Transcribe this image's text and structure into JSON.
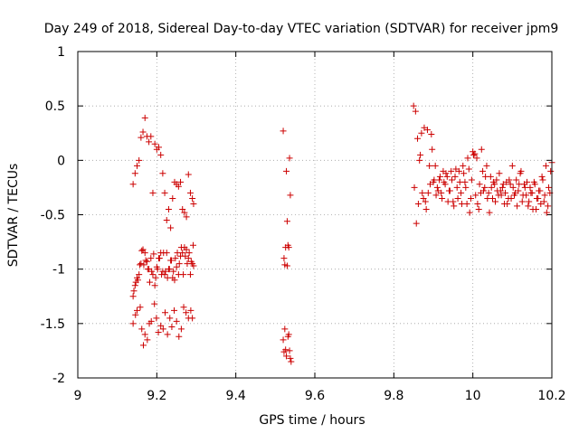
{
  "chart_data": {
    "type": "scatter",
    "title": "Day 249 of 2018, Sidereal Day-to-day VTEC variation (SDTVAR) for receiver jpm9",
    "xlabel": "GPS time / hours",
    "ylabel": "SDTVAR / TECUs",
    "xlim": [
      9.0,
      10.2
    ],
    "ylim": [
      -2.0,
      1.0
    ],
    "xticks": [
      9.0,
      9.2,
      9.4,
      9.6,
      9.8,
      10.0,
      10.2
    ],
    "xtick_labels": [
      "9",
      "9.2",
      "9.4",
      "9.6",
      "9.8",
      "10",
      "10.2"
    ],
    "yticks": [
      -2.0,
      -1.5,
      -1.0,
      -0.5,
      0.0,
      0.5,
      1.0
    ],
    "ytick_labels": [
      "-2",
      "-1.5",
      "-1",
      "-0.5",
      "0",
      "0.5",
      "1"
    ],
    "grid": true,
    "marker": "+",
    "color": "#cc0000",
    "series": [
      {
        "name": "SDTVAR",
        "x": [
          9.14,
          9.145,
          9.15,
          9.155,
          9.16,
          9.165,
          9.17,
          9.175,
          9.18,
          9.185,
          9.19,
          9.195,
          9.2,
          9.205,
          9.21,
          9.215,
          9.22,
          9.225,
          9.23,
          9.235,
          9.24,
          9.245,
          9.25,
          9.255,
          9.26,
          9.265,
          9.27,
          9.275,
          9.28,
          9.285,
          9.29,
          9.293,
          9.14,
          9.145,
          9.15,
          9.155,
          9.16,
          9.165,
          9.17,
          9.175,
          9.18,
          9.185,
          9.19,
          9.195,
          9.2,
          9.205,
          9.21,
          9.215,
          9.22,
          9.225,
          9.23,
          9.235,
          9.24,
          9.245,
          9.25,
          9.255,
          9.26,
          9.265,
          9.27,
          9.275,
          9.28,
          9.285,
          9.29,
          9.293,
          9.142,
          9.147,
          9.152,
          9.157,
          9.162,
          9.167,
          9.172,
          9.177,
          9.182,
          9.187,
          9.192,
          9.197,
          9.202,
          9.207,
          9.212,
          9.217,
          9.222,
          9.227,
          9.232,
          9.237,
          9.242,
          9.247,
          9.252,
          9.257,
          9.262,
          9.267,
          9.272,
          9.277,
          9.282,
          9.287,
          9.292,
          9.14,
          9.146,
          9.15,
          9.158,
          9.162,
          9.166,
          9.17,
          9.176,
          9.181,
          9.186,
          9.194,
          9.199,
          9.204,
          9.21,
          9.216,
          9.221,
          9.227,
          9.233,
          9.238,
          9.244,
          9.25,
          9.256,
          9.262,
          9.268,
          9.274,
          9.28,
          9.286,
          9.29,
          9.52,
          9.522,
          9.524,
          9.526,
          9.528,
          9.53,
          9.532,
          9.534,
          9.536,
          9.538,
          9.54,
          9.52,
          9.522,
          9.524,
          9.526,
          9.528,
          9.53,
          9.532,
          9.534,
          9.536,
          9.538,
          9.85,
          9.855,
          9.86,
          9.865,
          9.87,
          9.875,
          9.88,
          9.885,
          9.89,
          9.895,
          9.9,
          9.905,
          9.91,
          9.915,
          9.92,
          9.925,
          9.93,
          9.935,
          9.94,
          9.945,
          9.95,
          9.955,
          9.96,
          9.965,
          9.97,
          9.975,
          9.98,
          9.985,
          9.99,
          9.995,
          10.0,
          10.005,
          10.01,
          10.015,
          10.02,
          10.025,
          10.03,
          10.035,
          10.04,
          10.045,
          10.05,
          10.055,
          10.06,
          10.065,
          10.07,
          10.075,
          10.08,
          10.085,
          10.09,
          10.095,
          10.1,
          10.105,
          10.11,
          10.115,
          10.12,
          10.125,
          10.13,
          10.135,
          10.14,
          10.145,
          10.15,
          10.155,
          10.16,
          10.165,
          10.17,
          10.175,
          10.18,
          10.185,
          10.19,
          10.195,
          10.2,
          9.852,
          9.857,
          9.862,
          9.867,
          9.872,
          9.877,
          9.882,
          9.887,
          9.892,
          9.897,
          9.902,
          9.907,
          9.912,
          9.917,
          9.922,
          9.927,
          9.932,
          9.937,
          9.942,
          9.947,
          9.952,
          9.957,
          9.962,
          9.967,
          9.972,
          9.977,
          9.982,
          9.987,
          9.992,
          9.997,
          10.002,
          10.007,
          10.012,
          10.017,
          10.022,
          10.027,
          10.032,
          10.037,
          10.042,
          10.047,
          10.052,
          10.057,
          10.062,
          10.067,
          10.072,
          10.077,
          10.082,
          10.087,
          10.092,
          10.097,
          10.102,
          10.107,
          10.112,
          10.117,
          10.122,
          10.127,
          10.132,
          10.137,
          10.142,
          10.147,
          10.152,
          10.157,
          10.162,
          10.167,
          10.172,
          10.177,
          10.182,
          10.187,
          10.192,
          10.197
        ],
        "y": [
          -0.22,
          -0.12,
          -0.05,
          0.0,
          0.21,
          0.26,
          0.39,
          0.22,
          0.17,
          0.22,
          -0.3,
          0.15,
          0.1,
          0.12,
          0.05,
          -0.12,
          -0.3,
          -0.55,
          -0.45,
          -0.62,
          -0.35,
          -0.2,
          -0.22,
          -0.24,
          -0.2,
          -0.45,
          -0.48,
          -0.52,
          -0.13,
          -0.3,
          -0.35,
          -0.4,
          -1.25,
          -1.15,
          -1.08,
          -1.05,
          -0.95,
          -0.82,
          -0.85,
          -0.93,
          -1.0,
          -0.9,
          -1.05,
          -1.15,
          -0.98,
          -0.9,
          -0.85,
          -1.02,
          -1.05,
          -0.85,
          -1.0,
          -0.92,
          -1.08,
          -1.1,
          -0.98,
          -1.05,
          -0.88,
          -0.85,
          -0.8,
          -0.82,
          -0.9,
          -1.05,
          -0.95,
          -0.97,
          -1.2,
          -1.12,
          -1.1,
          -0.96,
          -0.83,
          -0.96,
          -0.92,
          -1.0,
          -1.12,
          -1.02,
          -0.86,
          -1.08,
          -1.0,
          -0.9,
          -1.05,
          -0.85,
          -1.02,
          -1.08,
          -1.0,
          -0.92,
          -1.02,
          -0.9,
          -0.85,
          -0.95,
          -0.8,
          -1.05,
          -0.88,
          -0.95,
          -0.85,
          -0.93,
          -0.78,
          -1.5,
          -1.42,
          -1.38,
          -1.35,
          -1.55,
          -1.7,
          -1.6,
          -1.65,
          -1.5,
          -1.48,
          -1.32,
          -1.45,
          -1.58,
          -1.52,
          -1.55,
          -1.4,
          -1.6,
          -1.45,
          -1.53,
          -1.38,
          -1.48,
          -1.62,
          -1.55,
          -1.35,
          -1.4,
          -1.45,
          -1.38,
          -1.45,
          0.27,
          -0.9,
          -0.96,
          -1.74,
          -0.1,
          -0.56,
          -0.78,
          -1.6,
          0.02,
          -0.32,
          -1.85,
          -1.65,
          -1.76,
          -1.55,
          -0.8,
          -1.8,
          -0.97,
          -1.62,
          -0.8,
          -1.75,
          -1.82,
          0.5,
          0.45,
          0.2,
          0.0,
          0.25,
          -0.35,
          -0.38,
          0.28,
          -0.05,
          0.24,
          -0.2,
          -0.05,
          -0.25,
          -0.18,
          -0.3,
          -0.1,
          -0.22,
          -0.15,
          -0.28,
          -0.1,
          -0.38,
          -0.15,
          -0.25,
          -0.1,
          -0.3,
          -0.05,
          -0.2,
          -0.4,
          -0.08,
          -0.35,
          0.08,
          0.06,
          0.02,
          -0.45,
          -0.3,
          -0.1,
          -0.25,
          -0.05,
          -0.3,
          -0.15,
          -0.35,
          -0.22,
          -0.18,
          -0.32,
          -0.28,
          -0.25,
          -0.4,
          -0.2,
          -0.35,
          -0.22,
          -0.05,
          -0.32,
          -0.18,
          -0.28,
          -0.12,
          -0.38,
          -0.22,
          -0.32,
          -0.42,
          -0.25,
          -0.3,
          -0.2,
          -0.45,
          -0.35,
          -0.28,
          -0.15,
          -0.38,
          -0.05,
          -0.42,
          -0.3,
          -0.02,
          -0.25,
          -0.58,
          -0.4,
          0.05,
          -0.3,
          0.3,
          -0.45,
          -0.3,
          -0.22,
          0.1,
          -0.18,
          -0.32,
          -0.28,
          -0.15,
          -0.35,
          -0.2,
          -0.12,
          -0.38,
          -0.28,
          -0.18,
          -0.42,
          -0.08,
          -0.35,
          -0.2,
          -0.4,
          -0.12,
          -0.25,
          0.02,
          -0.48,
          -0.18,
          0.05,
          -0.32,
          -0.4,
          -0.22,
          0.1,
          -0.28,
          -0.15,
          -0.35,
          -0.48,
          -0.25,
          -0.2,
          -0.38,
          -0.28,
          -0.12,
          -0.32,
          -0.22,
          -0.3,
          -0.4,
          -0.18,
          -0.35,
          -0.25,
          -0.3,
          -0.42,
          -0.22,
          -0.1,
          -0.32,
          -0.25,
          -0.2,
          -0.38,
          -0.3,
          -0.45,
          -0.22,
          -0.35,
          -0.28,
          -0.4,
          -0.18,
          -0.32,
          -0.48,
          -0.25,
          -0.1
        ]
      }
    ]
  }
}
